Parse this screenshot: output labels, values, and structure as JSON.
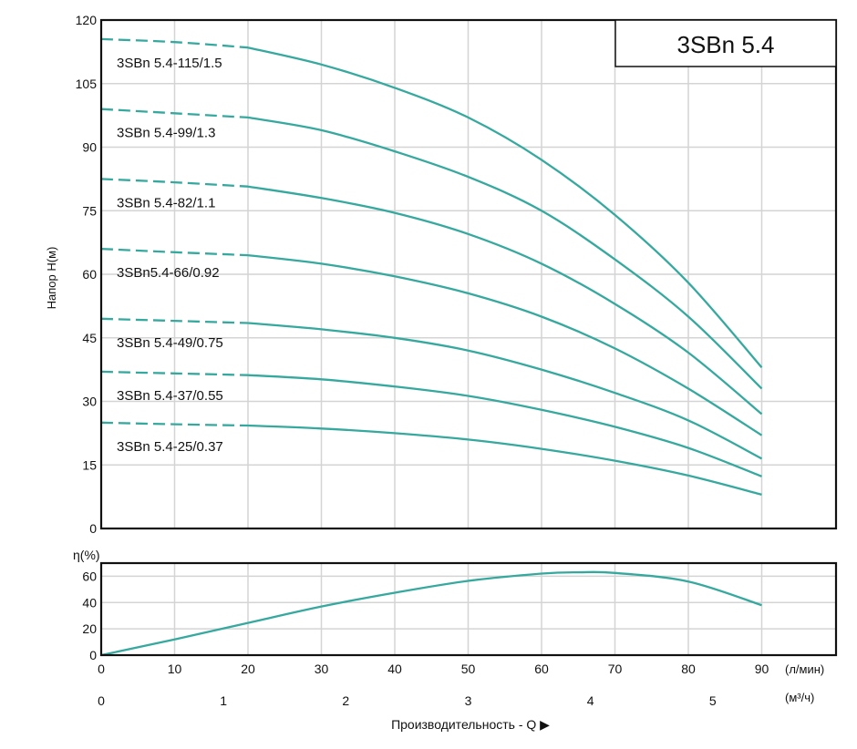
{
  "model_badge": "3SBn 5.4",
  "chart_data": [
    {
      "type": "line",
      "title": "3SBn 5.4",
      "ylabel": "Напор H(м)",
      "xlabel": "Производительность - Q ▶",
      "x_unit_primary": "(л/мин)",
      "x_unit_secondary": "(м³/ч)",
      "xlim": [
        0,
        100
      ],
      "ylim": [
        0,
        120
      ],
      "x_ticks": [
        0,
        10,
        20,
        30,
        40,
        50,
        60,
        70,
        80,
        90
      ],
      "y_ticks": [
        0,
        15,
        30,
        45,
        60,
        75,
        90,
        105,
        120
      ],
      "x_ticks_secondary": [
        0,
        1,
        2,
        3,
        4,
        5
      ],
      "grid": true,
      "dashed_until_x": 20,
      "series": [
        {
          "name": "3SBn 5.4-115/1.5",
          "x": [
            0,
            10,
            20,
            30,
            40,
            50,
            60,
            70,
            80,
            90
          ],
          "values": [
            115.5,
            114.8,
            113.5,
            109.5,
            104,
            97,
            87,
            74,
            58,
            38
          ]
        },
        {
          "name": "3SBn 5.4-99/1.3",
          "x": [
            0,
            10,
            20,
            30,
            40,
            50,
            60,
            70,
            80,
            90
          ],
          "values": [
            99,
            98,
            97,
            94,
            89,
            83,
            75,
            63.5,
            50,
            33
          ]
        },
        {
          "name": "3SBn 5.4-82/1.1",
          "x": [
            0,
            10,
            20,
            30,
            40,
            50,
            60,
            70,
            80,
            90
          ],
          "values": [
            82.5,
            81.7,
            80.7,
            78,
            74.5,
            69.5,
            62.5,
            53,
            41.5,
            27
          ]
        },
        {
          "name": "3SBn5.4-66/0.92",
          "x": [
            0,
            10,
            20,
            30,
            40,
            50,
            60,
            70,
            80,
            90
          ],
          "values": [
            66,
            65.2,
            64.5,
            62.5,
            59.5,
            55.5,
            50,
            42.5,
            33,
            22
          ]
        },
        {
          "name": "3SBn 5.4-49/0.75",
          "x": [
            0,
            10,
            20,
            30,
            40,
            50,
            60,
            70,
            80,
            90
          ],
          "values": [
            49.5,
            49,
            48.5,
            47,
            45,
            42,
            37.5,
            32,
            25.5,
            16.5
          ]
        },
        {
          "name": "3SBn 5.4-37/0.55",
          "x": [
            0,
            10,
            20,
            30,
            40,
            50,
            60,
            70,
            80,
            90
          ],
          "values": [
            37,
            36.6,
            36.2,
            35.2,
            33.5,
            31.3,
            28,
            24,
            19,
            12.3
          ]
        },
        {
          "name": "3SBn 5.4-25/0.37",
          "x": [
            0,
            10,
            20,
            30,
            40,
            50,
            60,
            70,
            80,
            90
          ],
          "values": [
            25,
            24.6,
            24.3,
            23.6,
            22.5,
            21,
            18.8,
            16,
            12.5,
            8
          ]
        }
      ]
    },
    {
      "type": "line",
      "ylabel": "η(%)",
      "xlim": [
        0,
        100
      ],
      "ylim": [
        0,
        70
      ],
      "y_ticks": [
        0,
        20,
        40,
        60
      ],
      "grid": true,
      "series": [
        {
          "name": "η",
          "x": [
            0,
            10,
            20,
            30,
            40,
            50,
            60,
            65,
            70,
            80,
            90
          ],
          "values": [
            0,
            12,
            24.5,
            37,
            47.5,
            56.5,
            62,
            63,
            62.5,
            56,
            38
          ]
        }
      ]
    }
  ]
}
